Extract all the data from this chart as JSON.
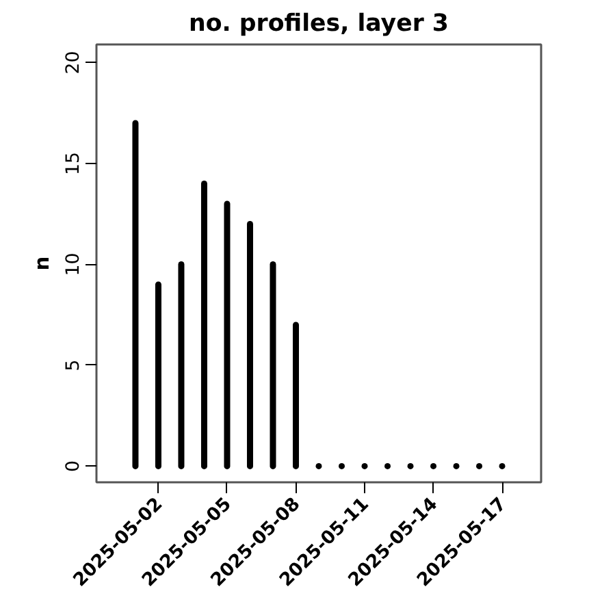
{
  "chart_data": {
    "type": "bar",
    "title": "no. profiles, layer 3",
    "ylabel": "n",
    "x": [
      "2025-05-01",
      "2025-05-02",
      "2025-05-03",
      "2025-05-04",
      "2025-05-05",
      "2025-05-06",
      "2025-05-07",
      "2025-05-08",
      "2025-05-09",
      "2025-05-10",
      "2025-05-11",
      "2025-05-12",
      "2025-05-13",
      "2025-05-14",
      "2025-05-15",
      "2025-05-16",
      "2025-05-17"
    ],
    "values": [
      17,
      9,
      10,
      14,
      13,
      12,
      10,
      7,
      0,
      0,
      0,
      0,
      0,
      0,
      0,
      0,
      0
    ],
    "color": "#000000",
    "xlim": [
      "2025-04-29T07:12",
      "2025-05-18T16:48"
    ],
    "xticks": [
      "2025-05-02",
      "2025-05-05",
      "2025-05-08",
      "2025-05-11",
      "2025-05-14",
      "2025-05-17"
    ],
    "ylim": [
      -0.8,
      20.9
    ],
    "yticks": [
      0,
      5,
      10,
      15,
      20
    ],
    "grid": false
  }
}
